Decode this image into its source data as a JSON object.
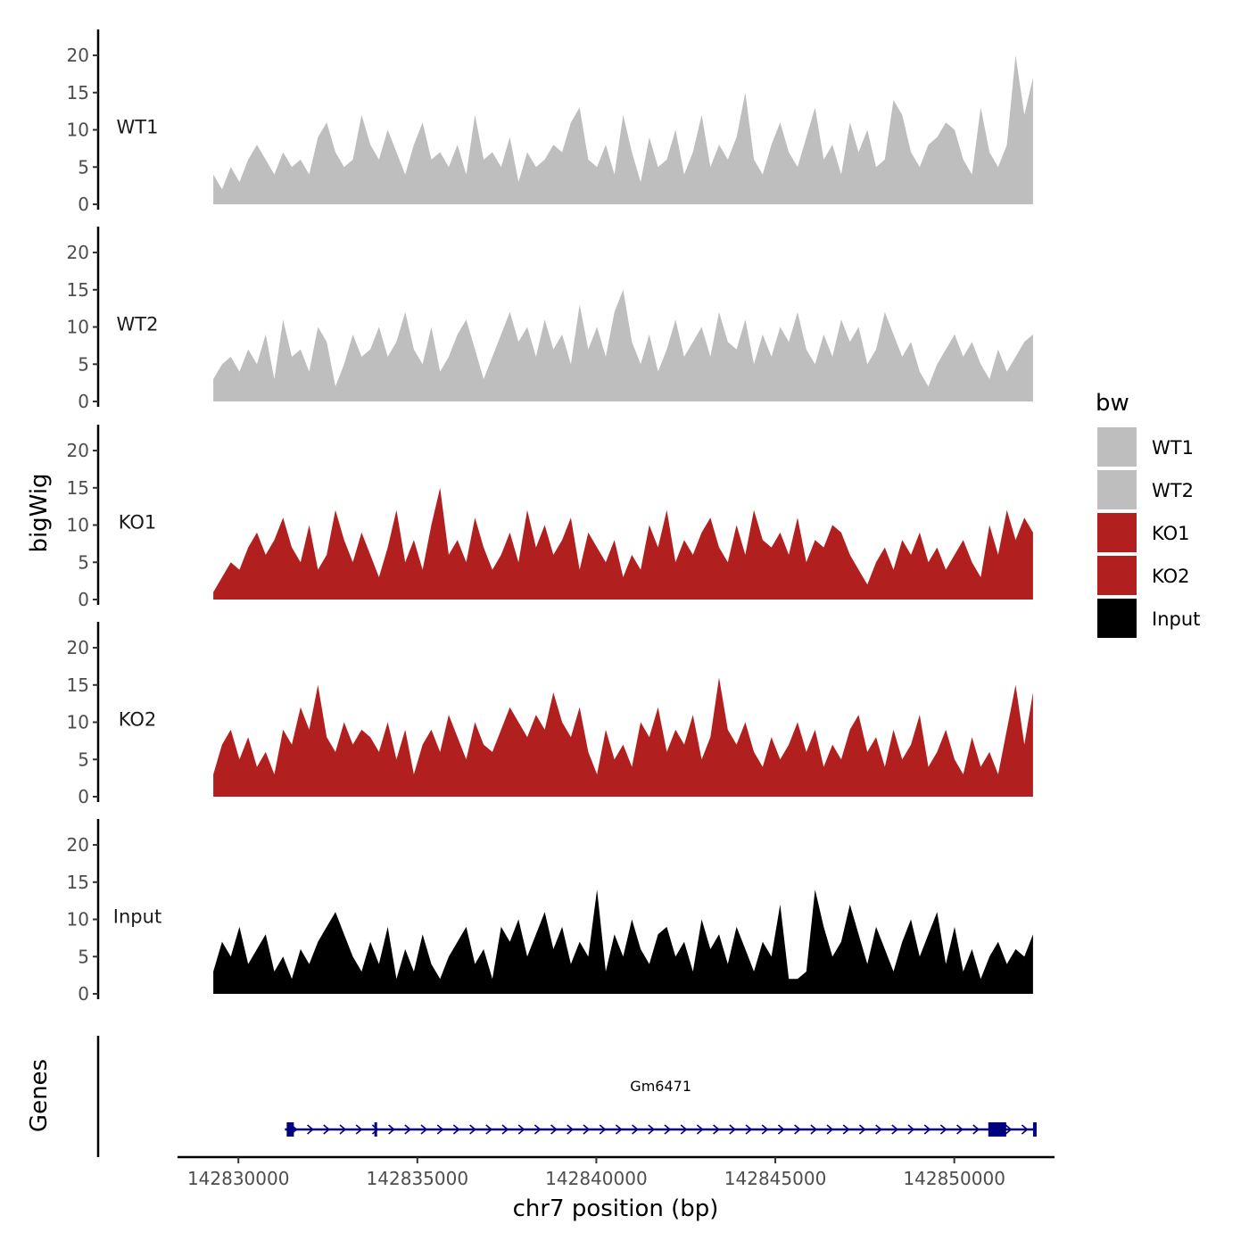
{
  "chart_data": {
    "type": "area",
    "title": "",
    "xlabel": "chr7 position (bp)",
    "ylabel": "bigWig",
    "genes_label": "Genes",
    "x_range": [
      142828300,
      142852800
    ],
    "x_ticks": [
      142830000,
      142835000,
      142840000,
      142845000,
      142850000
    ],
    "x_tick_labels": [
      "142830000",
      "142835000",
      "142840000",
      "142845000",
      "142850000"
    ],
    "y_range": [
      0,
      23
    ],
    "y_ticks": [
      0,
      5,
      10,
      15,
      20
    ],
    "y_tick_labels": [
      "0",
      "5",
      "10",
      "15",
      "20"
    ],
    "series_x_start": 142829300,
    "series_x_end": 142852200,
    "legend_title": "bw",
    "legend_position": "right",
    "series": [
      {
        "name": "WT1",
        "color": "#bebebe",
        "values": [
          4,
          2,
          5,
          3,
          6,
          8,
          6,
          4,
          7,
          5,
          6,
          4,
          9,
          11,
          7,
          5,
          6,
          12,
          8,
          6,
          10,
          7,
          4,
          8,
          11,
          6,
          7,
          5,
          8,
          4,
          12,
          6,
          7,
          5,
          9,
          3,
          7,
          5,
          6,
          8,
          7,
          11,
          13,
          6,
          5,
          8,
          4,
          12,
          7,
          3,
          9,
          5,
          6,
          10,
          4,
          7,
          12,
          5,
          8,
          6,
          9,
          15,
          6,
          4,
          8,
          11,
          7,
          5,
          9,
          13,
          6,
          8,
          4,
          11,
          7,
          10,
          5,
          6,
          14,
          12,
          7,
          5,
          8,
          9,
          11,
          10,
          6,
          4,
          13,
          7,
          5,
          8,
          20,
          12,
          17
        ]
      },
      {
        "name": "WT2",
        "color": "#bebebe",
        "values": [
          3,
          5,
          6,
          4,
          7,
          5,
          9,
          3,
          11,
          6,
          7,
          4,
          10,
          8,
          2,
          5,
          9,
          6,
          7,
          10,
          6,
          8,
          12,
          7,
          5,
          10,
          4,
          6,
          9,
          11,
          7,
          3,
          6,
          9,
          12,
          8,
          10,
          6,
          11,
          7,
          9,
          5,
          13,
          7,
          10,
          6,
          12,
          15,
          8,
          5,
          9,
          4,
          7,
          11,
          6,
          8,
          10,
          6,
          12,
          8,
          7,
          11,
          5,
          9,
          6,
          10,
          8,
          12,
          7,
          5,
          9,
          6,
          11,
          8,
          10,
          5,
          7,
          12,
          9,
          6,
          8,
          4,
          2,
          5,
          7,
          9,
          6,
          8,
          5,
          3,
          7,
          4,
          6,
          8,
          9
        ]
      },
      {
        "name": "KO1",
        "color": "#b21f1f",
        "values": [
          1,
          3,
          5,
          4,
          7,
          9,
          6,
          8,
          11,
          7,
          5,
          10,
          4,
          6,
          12,
          8,
          5,
          9,
          6,
          3,
          7,
          12,
          5,
          8,
          4,
          10,
          15,
          6,
          8,
          5,
          11,
          7,
          4,
          6,
          9,
          5,
          12,
          7,
          10,
          6,
          8,
          11,
          4,
          9,
          7,
          5,
          8,
          3,
          6,
          4,
          10,
          7,
          12,
          5,
          8,
          6,
          9,
          11,
          7,
          5,
          10,
          6,
          12,
          8,
          7,
          9,
          6,
          11,
          5,
          8,
          7,
          10,
          9,
          6,
          4,
          2,
          5,
          7,
          4,
          8,
          6,
          9,
          5,
          7,
          4,
          6,
          8,
          5,
          3,
          10,
          6,
          12,
          8,
          11,
          9
        ]
      },
      {
        "name": "KO2",
        "color": "#b21f1f",
        "values": [
          3,
          7,
          9,
          5,
          8,
          4,
          6,
          3,
          9,
          7,
          12,
          9,
          15,
          8,
          6,
          10,
          7,
          9,
          8,
          6,
          10,
          5,
          9,
          3,
          7,
          9,
          6,
          11,
          8,
          5,
          10,
          7,
          6,
          9,
          12,
          10,
          8,
          11,
          9,
          14,
          10,
          8,
          12,
          6,
          3,
          9,
          5,
          7,
          4,
          10,
          8,
          12,
          6,
          9,
          7,
          11,
          5,
          8,
          16,
          9,
          7,
          10,
          6,
          4,
          8,
          5,
          7,
          10,
          6,
          9,
          4,
          7,
          5,
          9,
          11,
          6,
          8,
          4,
          9,
          5,
          7,
          11,
          4,
          6,
          9,
          5,
          3,
          8,
          4,
          6,
          3,
          9,
          15,
          7,
          14
        ]
      },
      {
        "name": "Input",
        "color": "#000000",
        "values": [
          3,
          7,
          5,
          9,
          4,
          6,
          8,
          3,
          5,
          2,
          6,
          4,
          7,
          9,
          11,
          8,
          5,
          3,
          7,
          4,
          9,
          2,
          6,
          3,
          8,
          4,
          2,
          5,
          7,
          9,
          4,
          6,
          2,
          9,
          7,
          10,
          5,
          8,
          11,
          6,
          9,
          4,
          7,
          5,
          14,
          3,
          8,
          5,
          10,
          6,
          4,
          8,
          9,
          5,
          7,
          3,
          10,
          6,
          8,
          4,
          9,
          6,
          3,
          7,
          5,
          12,
          2,
          2,
          3,
          14,
          9,
          5,
          7,
          12,
          8,
          4,
          9,
          6,
          3,
          7,
          10,
          5,
          8,
          11,
          4,
          9,
          3,
          6,
          2,
          5,
          7,
          4,
          6,
          5,
          8
        ]
      }
    ],
    "gene": {
      "name": "Gm6471",
      "start": 142831300,
      "end": 142852300,
      "strand": "+",
      "exons": [
        [
          142831350,
          142831550
        ],
        [
          142833800,
          142833830
        ],
        [
          142850950,
          142851450
        ],
        [
          142852200,
          142852300
        ]
      ]
    }
  }
}
